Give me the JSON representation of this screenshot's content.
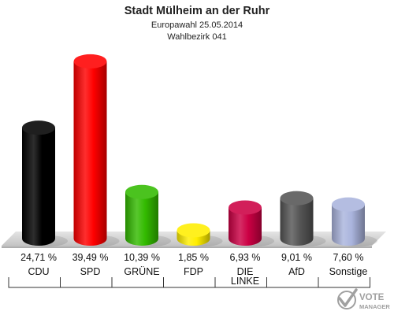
{
  "chart_data": {
    "type": "bar",
    "title": "Stadt Mülheim an der Ruhr",
    "subtitle_lines": [
      "Europawahl 25.05.2014",
      "Wahlbezirk 041"
    ],
    "categories": [
      {
        "name": "CDU",
        "lines": [
          "CDU"
        ]
      },
      {
        "name": "SPD",
        "lines": [
          "SPD"
        ]
      },
      {
        "name": "GRÜNE",
        "lines": [
          "GRÜNE"
        ]
      },
      {
        "name": "FDP",
        "lines": [
          "FDP"
        ]
      },
      {
        "name": "DIE LINKE",
        "lines": [
          "DIE",
          "LINKE"
        ]
      },
      {
        "name": "AfD",
        "lines": [
          "AfD"
        ]
      },
      {
        "name": "Sonstige",
        "lines": [
          "Sonstige"
        ]
      }
    ],
    "values": [
      24.71,
      39.49,
      10.39,
      1.85,
      6.93,
      9.01,
      7.6
    ],
    "value_labels": [
      "24,71 %",
      "39,49 %",
      "10,39 %",
      "1,85 %",
      "6,93 %",
      "9,01 %",
      "7,60 %"
    ],
    "colors": [
      "#000000",
      "#ff0000",
      "#33bb00",
      "#ffee00",
      "#cc0044",
      "#555555",
      "#aab4dd"
    ],
    "ylim": [
      0,
      40
    ],
    "grid": false,
    "legend": "none"
  },
  "branding": {
    "line1": "VOTE",
    "line2": "MANAGER"
  }
}
